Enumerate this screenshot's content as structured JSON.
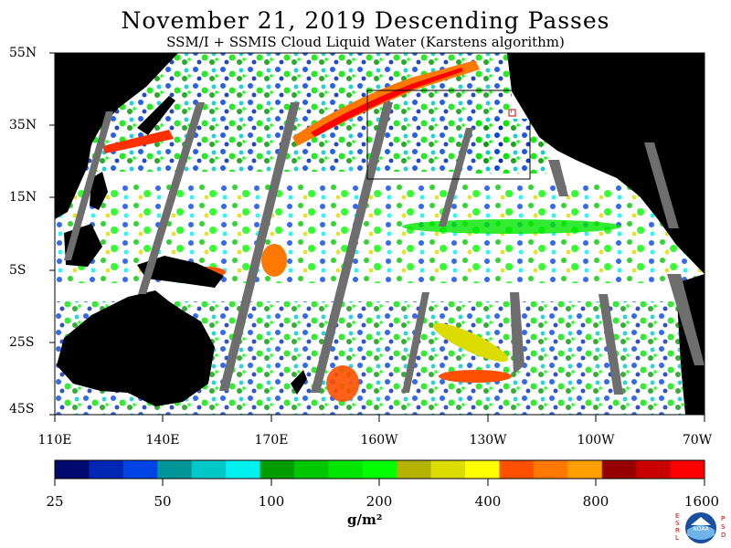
{
  "title": "November 21, 2019  Descending Passes",
  "subtitle": "SSM/I + SSMIS Cloud Liquid Water (Karstens algorithm)",
  "lat_labels": [
    "55N",
    "35N",
    "15N",
    "5S",
    "25S",
    "45S"
  ],
  "lon_labels": [
    "110E",
    "140E",
    "170E",
    "160W",
    "130W",
    "100W",
    "70W"
  ],
  "colorbar": {
    "tick_labels": [
      "25",
      "50",
      "100",
      "200",
      "400",
      "800",
      "1600"
    ],
    "units": "g/m²",
    "colors": [
      "#000a6e",
      "#0026b4",
      "#0044e6",
      "#00969a",
      "#00c8c8",
      "#00f0f0",
      "#009c00",
      "#00c800",
      "#00e600",
      "#00ff00",
      "#b4b400",
      "#dcdc00",
      "#ffff00",
      "#ff5000",
      "#ff7800",
      "#ffa000",
      "#960000",
      "#c80000",
      "#ff0000"
    ]
  },
  "colors": {
    "land": "#000000",
    "no_data_swath_gap": "#6e6e6e",
    "background": "#ffffff",
    "box_outline": "#000000"
  },
  "logo": {
    "left_text": "ESRL",
    "right_text": "PSD",
    "center_text": "NOAA"
  }
}
